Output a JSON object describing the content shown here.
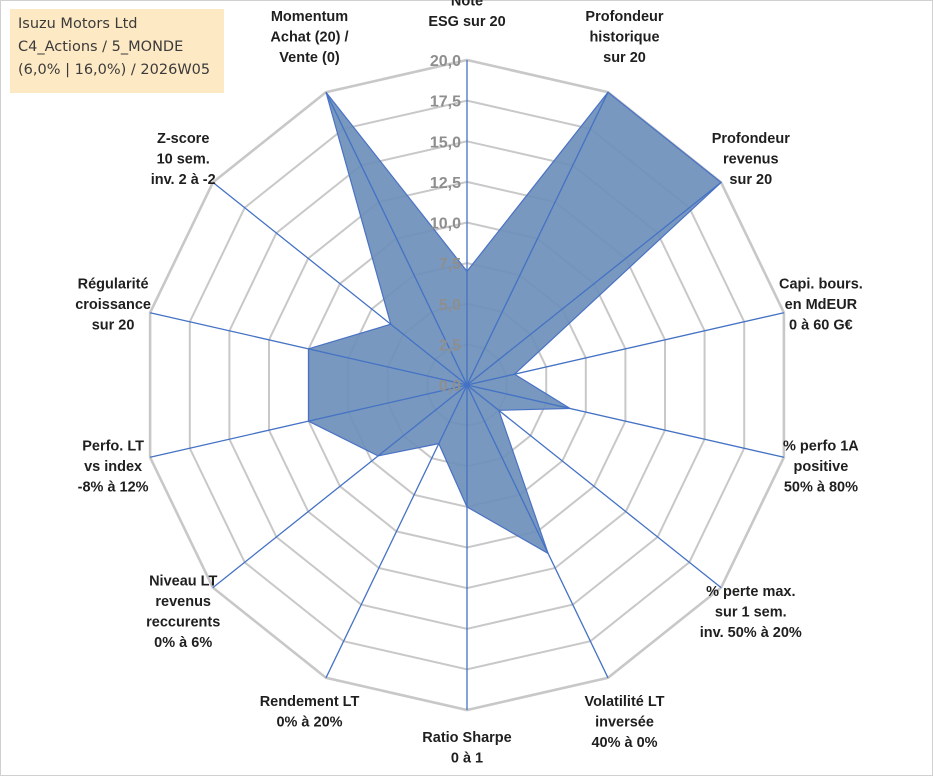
{
  "title_box": {
    "line1": "Isuzu Motors Ltd",
    "line2": "C4_Actions / 5_MONDE",
    "line3": "(6,0% | 16,0%) / 2026W05"
  },
  "chart_data": {
    "type": "radar",
    "r_min": 0,
    "r_max": 20,
    "tick_step": 2.5,
    "tick_labels": [
      "0,0",
      "2,5",
      "5,0",
      "7,5",
      "10,0",
      "12,5",
      "15,0",
      "17,5",
      "20,0"
    ],
    "categories": [
      [
        "Note",
        "ESG sur 20"
      ],
      [
        "Profondeur",
        "historique",
        "sur 20"
      ],
      [
        "Profondeur",
        "revenus",
        "sur 20"
      ],
      [
        "Capi. bours.",
        "en MdEUR",
        "0 à 60 G€"
      ],
      [
        "% perfo 1A",
        "positive",
        "50% à 80%"
      ],
      [
        "% perte max.",
        "sur 1 sem.",
        "inv. 50% à 20%"
      ],
      [
        "Volatilité LT",
        "inversée",
        "40% à 0%"
      ],
      [
        "Ratio Sharpe",
        "0 à 1"
      ],
      [
        "Rendement LT",
        "0% à 20%"
      ],
      [
        "Niveau LT",
        "revenus",
        "reccurents",
        "0% à 6%"
      ],
      [
        "Perfo. LT",
        "vs index",
        "-8% à 12%"
      ],
      [
        "Régularité",
        "croissance",
        "sur 20"
      ],
      [
        "Z-score",
        "10 sem.",
        "inv. 2 à -2"
      ],
      [
        "Momentum",
        "Achat (20) /",
        "Vente (0)"
      ]
    ],
    "series": [
      {
        "name": "Isuzu Motors Ltd",
        "values": [
          7.0,
          20.0,
          20.0,
          3.0,
          6.5,
          2.5,
          11.5,
          7.5,
          4.0,
          7.0,
          10.0,
          10.0,
          6.0,
          20.0
        ],
        "fill": "#6c8fba",
        "stroke": "#4a72c4"
      }
    ],
    "grid": true,
    "grid_color": "#c8c8c8",
    "axis_color": "#4472c4"
  }
}
